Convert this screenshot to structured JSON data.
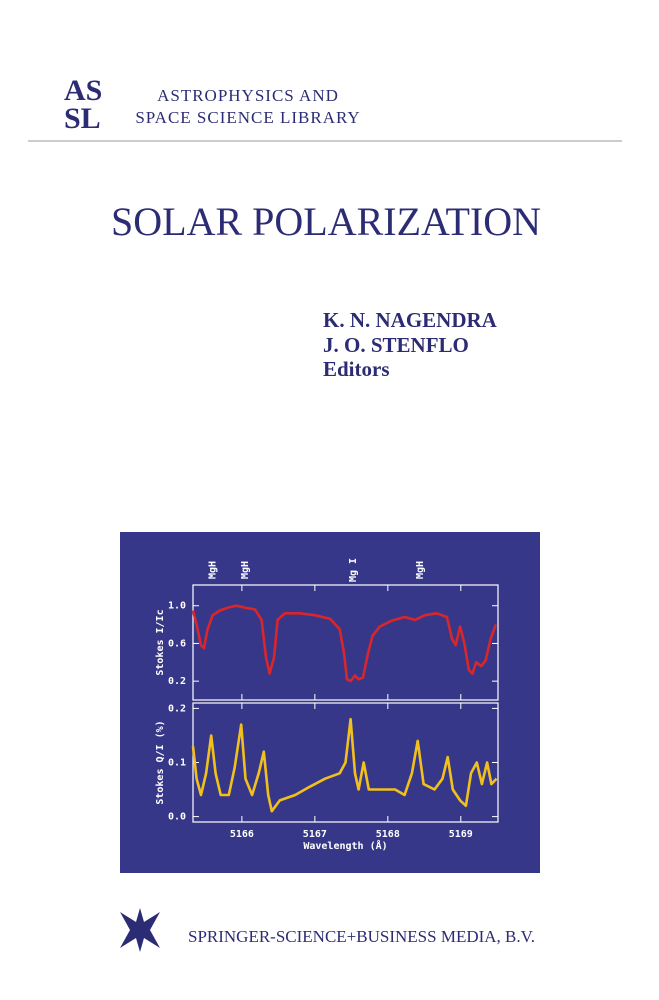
{
  "logo": [
    "AS",
    "SL"
  ],
  "series": [
    "ASTROPHYSICS AND",
    "SPACE SCIENCE LIBRARY"
  ],
  "title": "SOLAR POLARIZATION",
  "editors": [
    "K. N. NAGENDRA",
    "J. O. STENFLO"
  ],
  "role": "Editors",
  "publisher": "SPRINGER-SCIENCE+BUSINESS MEDIA, B.V.",
  "chart_data": [
    {
      "type": "line",
      "ylabel": "Stokes I/Ic",
      "color": "#d8262a",
      "annotations": [
        {
          "text": "MgH",
          "x": 5165.6
        },
        {
          "text": "MgH",
          "x": 5166.04
        },
        {
          "text": "Mg I",
          "x": 5167.52
        },
        {
          "text": "MgH",
          "x": 5168.44
        }
      ],
      "x": [
        5165.33,
        5165.38,
        5165.44,
        5165.48,
        5165.53,
        5165.6,
        5165.7,
        5165.81,
        5165.92,
        5166.04,
        5166.18,
        5166.27,
        5166.33,
        5166.38,
        5166.44,
        5166.49,
        5166.59,
        5166.79,
        5167.0,
        5167.21,
        5167.34,
        5167.4,
        5167.44,
        5167.49,
        5167.55,
        5167.6,
        5167.66,
        5167.73,
        5167.79,
        5167.89,
        5168.05,
        5168.23,
        5168.37,
        5168.51,
        5168.67,
        5168.81,
        5168.88,
        5168.93,
        5168.99,
        5169.05,
        5169.11,
        5169.16,
        5169.21,
        5169.28,
        5169.34,
        5169.41,
        5169.48
      ],
      "values": [
        0.95,
        0.8,
        0.58,
        0.55,
        0.75,
        0.9,
        0.95,
        0.98,
        1.0,
        0.98,
        0.96,
        0.85,
        0.45,
        0.28,
        0.45,
        0.85,
        0.92,
        0.92,
        0.9,
        0.86,
        0.75,
        0.5,
        0.22,
        0.2,
        0.26,
        0.22,
        0.24,
        0.5,
        0.68,
        0.78,
        0.84,
        0.88,
        0.85,
        0.9,
        0.92,
        0.88,
        0.65,
        0.58,
        0.78,
        0.6,
        0.32,
        0.28,
        0.4,
        0.36,
        0.42,
        0.65,
        0.8
      ],
      "xlim": [
        5165.33,
        5169.51
      ],
      "xticks": [
        5166,
        5167,
        5168,
        5169
      ],
      "ylim": [
        0,
        1.22
      ],
      "yticks": [
        {
          "value": 1,
          "label": "1.0"
        },
        0.6,
        0.2
      ]
    },
    {
      "type": "line",
      "ylabel": "Stokes Q/I (%)",
      "xlabel": "Wavelength (Å)",
      "color": "#f2c01c",
      "x": [
        5165.33,
        5165.38,
        5165.44,
        5165.51,
        5165.58,
        5165.64,
        5165.71,
        5165.82,
        5165.9,
        5165.99,
        5166.05,
        5166.14,
        5166.23,
        5166.3,
        5166.36,
        5166.41,
        5166.52,
        5166.73,
        5166.93,
        5167.14,
        5167.34,
        5167.42,
        5167.49,
        5167.55,
        5167.6,
        5167.67,
        5167.74,
        5167.89,
        5168.1,
        5168.23,
        5168.33,
        5168.41,
        5168.49,
        5168.64,
        5168.75,
        5168.82,
        5168.89,
        5168.99,
        5169.07,
        5169.14,
        5169.22,
        5169.29,
        5169.36,
        5169.42,
        5169.49
      ],
      "values": [
        0.13,
        0.07,
        0.04,
        0.08,
        0.15,
        0.08,
        0.04,
        0.04,
        0.09,
        0.17,
        0.07,
        0.04,
        0.08,
        0.12,
        0.04,
        0.01,
        0.03,
        0.04,
        0.055,
        0.07,
        0.08,
        0.1,
        0.18,
        0.08,
        0.05,
        0.1,
        0.05,
        0.05,
        0.05,
        0.04,
        0.08,
        0.14,
        0.06,
        0.05,
        0.07,
        0.11,
        0.05,
        0.03,
        0.02,
        0.08,
        0.1,
        0.06,
        0.1,
        0.06,
        0.07
      ],
      "xlim": [
        5165.33,
        5169.51
      ],
      "xticks": [
        5166,
        5167,
        5168,
        5169
      ],
      "ylim": [
        -0.01,
        0.21
      ],
      "yticks": [
        0.2,
        0.1,
        {
          "value": 0,
          "label": "0.0"
        }
      ]
    }
  ]
}
